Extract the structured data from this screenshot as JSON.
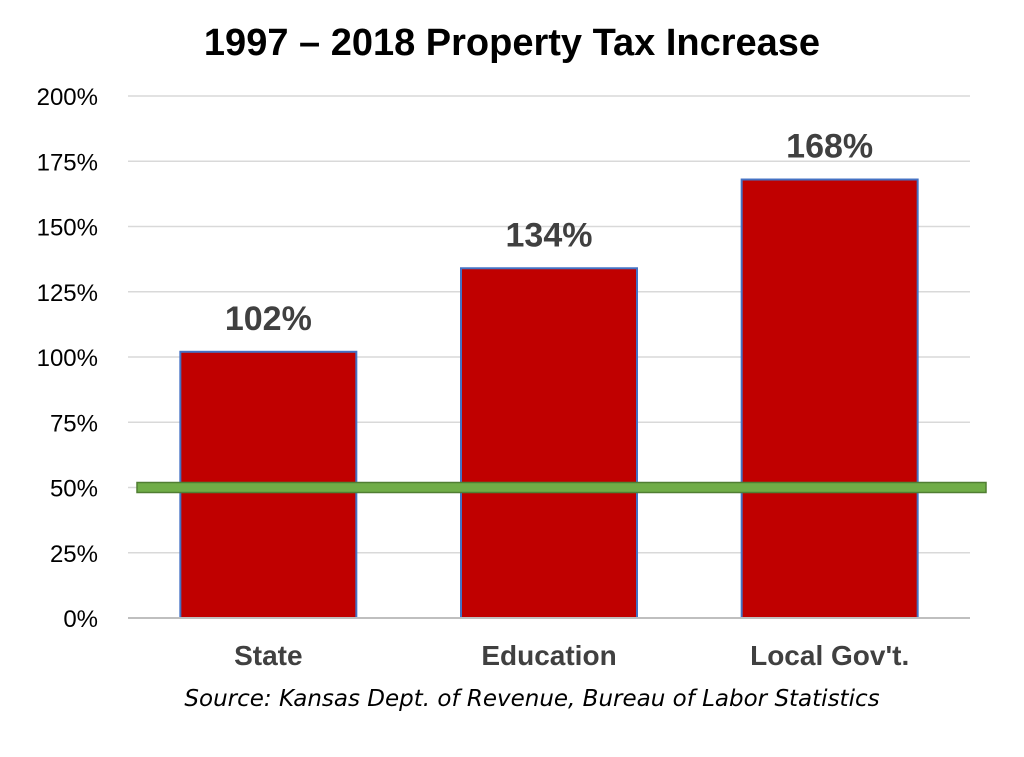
{
  "chart_data": {
    "type": "bar",
    "title": "1997 – 2018 Property Tax Increase",
    "categories": [
      "State",
      "Education",
      "Local Gov't."
    ],
    "values": [
      102,
      134,
      168
    ],
    "value_labels": [
      "102%",
      "134%",
      "168%"
    ],
    "ylim": [
      0,
      200
    ],
    "yticks": [
      "0%",
      "25%",
      "50%",
      "75%",
      "100%",
      "125%",
      "150%",
      "175%",
      "200%"
    ],
    "ytick_values": [
      0,
      25,
      50,
      75,
      100,
      125,
      150,
      175,
      200
    ],
    "reference_line": {
      "value": 50,
      "color": "#70ad47"
    },
    "bar_color": "#c00000",
    "bar_edge_color": "#4472c4",
    "grid": true,
    "legend": "none",
    "source": "Source: Kansas Dept. of Revenue, Bureau of Labor Statistics"
  }
}
